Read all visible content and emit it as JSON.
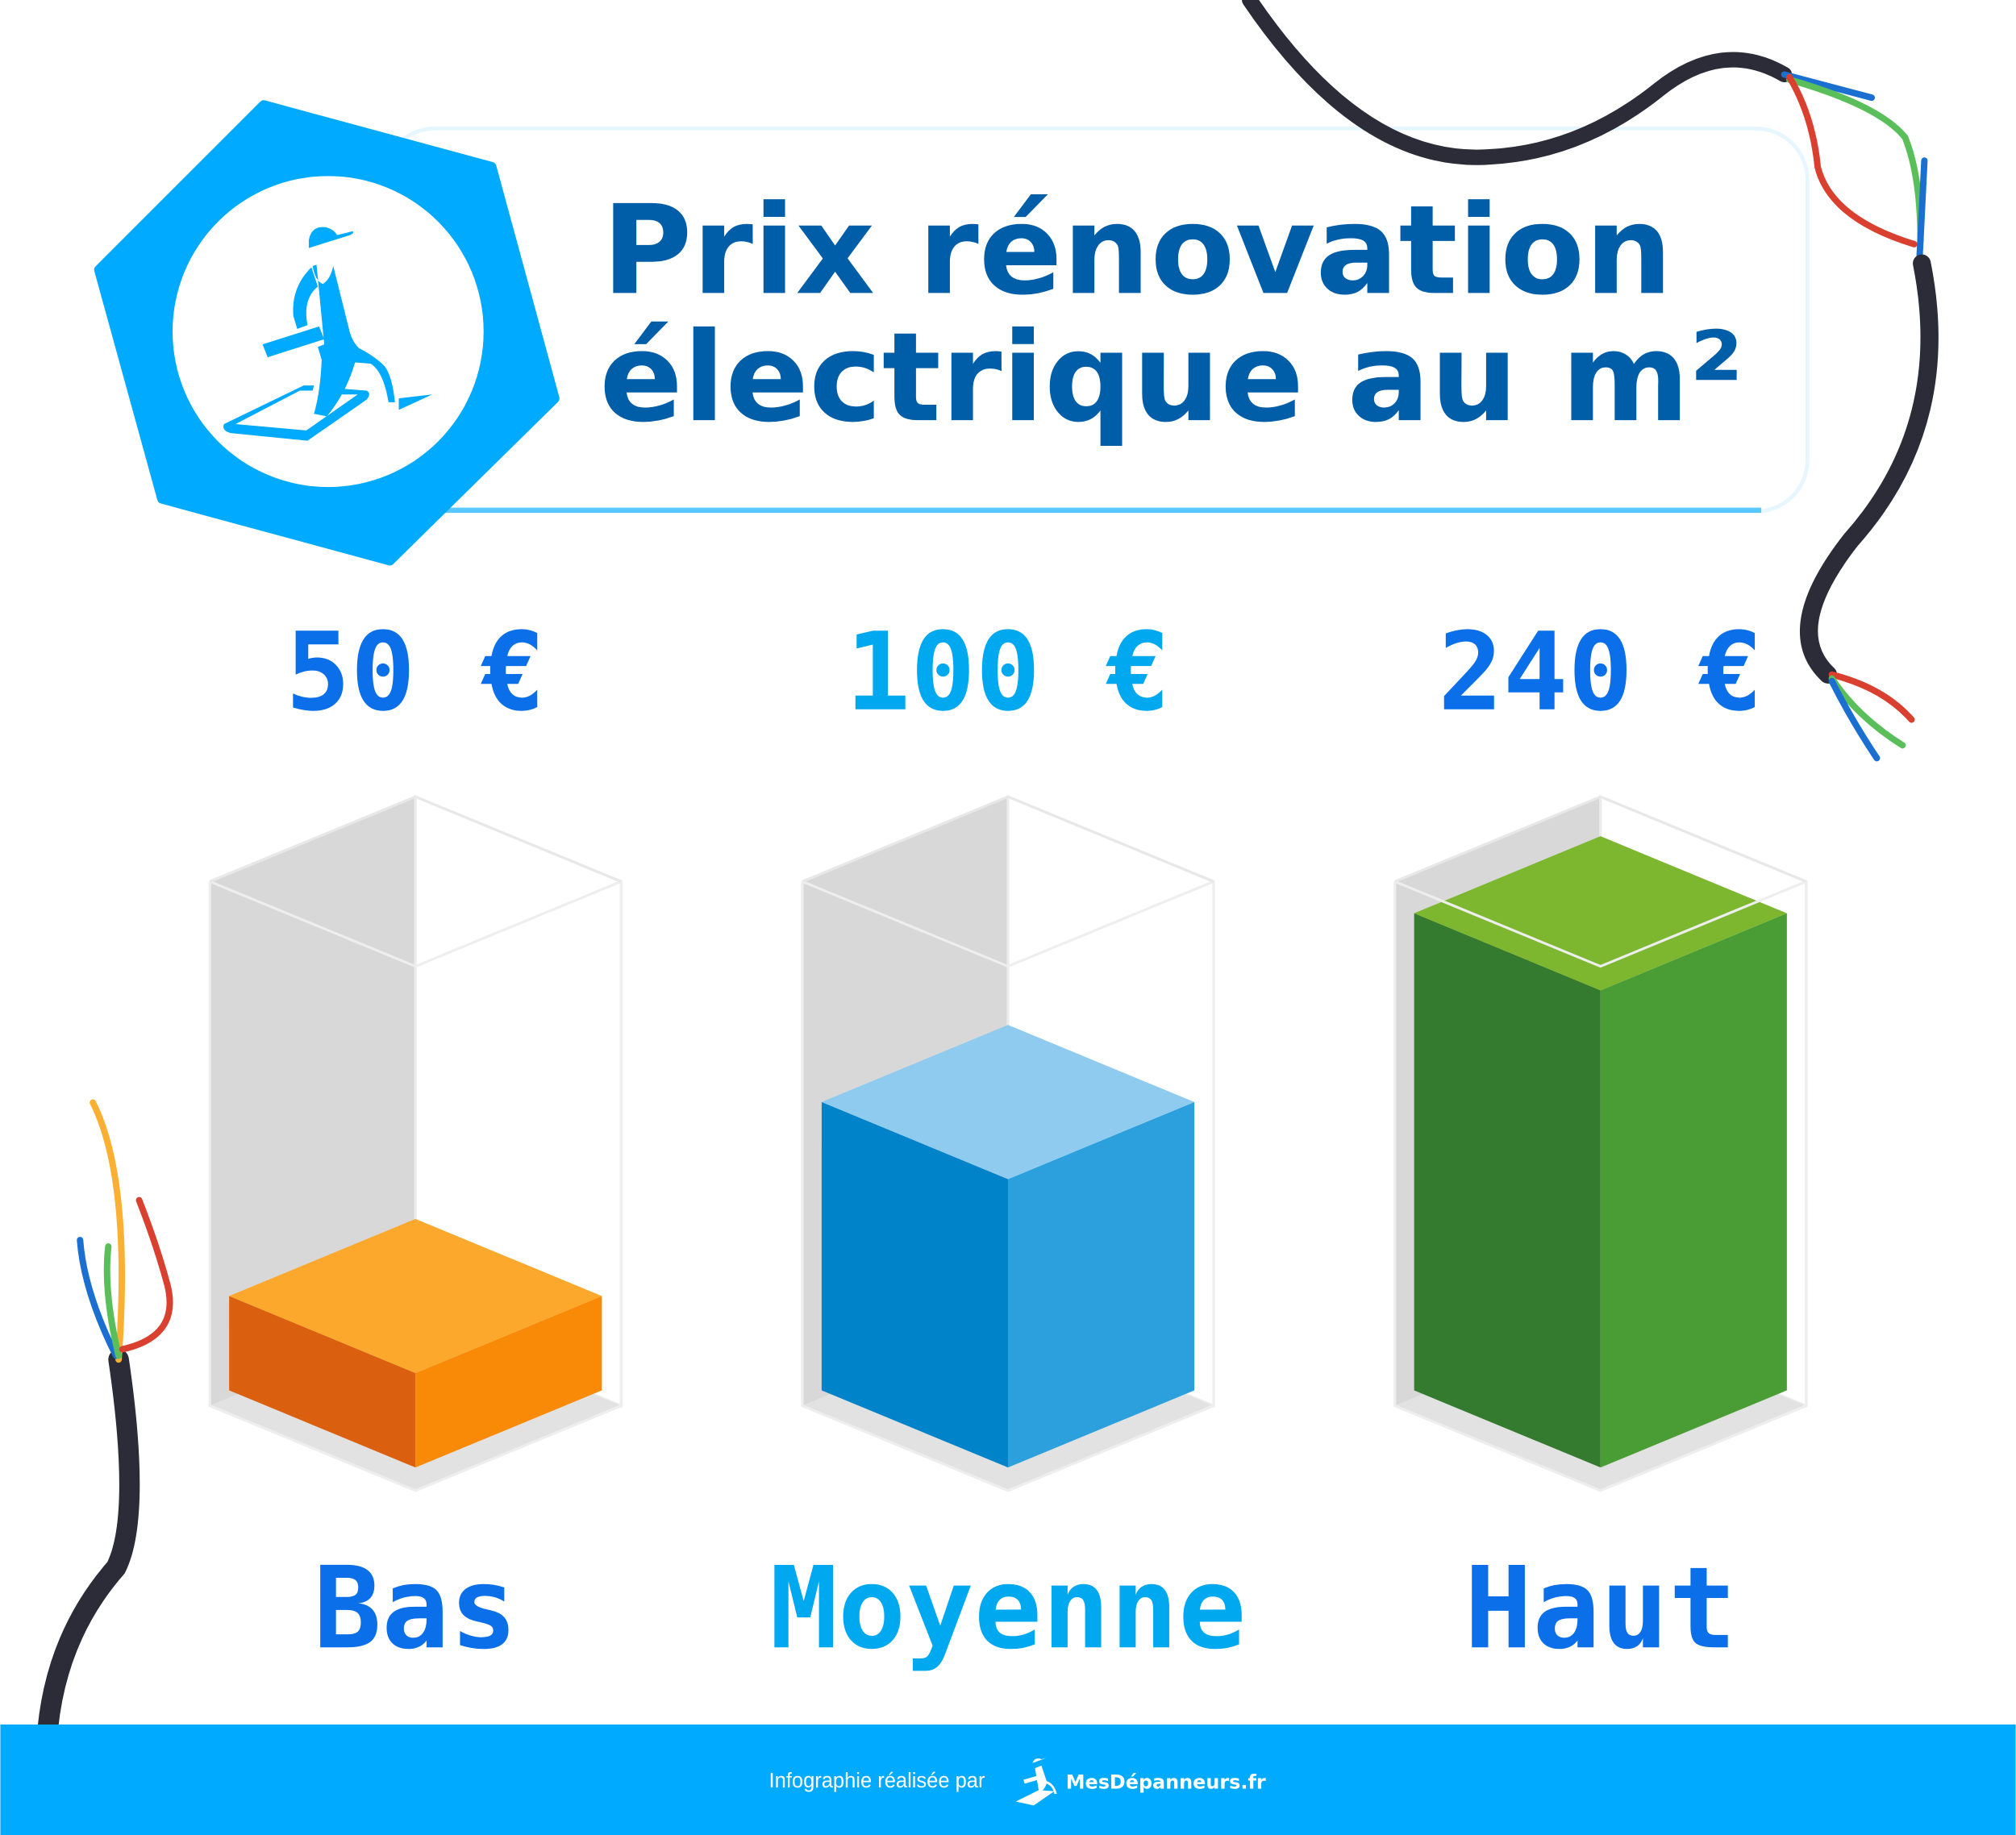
{
  "title": {
    "line1": "Prix rénovation",
    "line2": "électrique au m²"
  },
  "colors": {
    "title": "#005ea8",
    "accent": "#00aaff",
    "dark_blue": "#0a6fe8",
    "light_blue": "#00a8f0",
    "footer_bg": "#00aaff"
  },
  "chart_data": {
    "type": "bar",
    "style": "isometric-3d",
    "title": "Prix rénovation électrique au m²",
    "categories": [
      "Bas",
      "Moyenne",
      "Haut"
    ],
    "values": [
      50,
      100,
      240
    ],
    "value_labels": [
      "50 €",
      "100 €",
      "240 €"
    ],
    "unit": "€",
    "fill_level": [
      0.18,
      0.55,
      0.91
    ],
    "bar_colors": [
      {
        "top": "#fca82d",
        "left": "#da6010",
        "right": "#f98a07"
      },
      {
        "top": "#8ecbef",
        "left": "#0083c8",
        "right": "#2ba0dc"
      },
      {
        "top": "#7cb72f",
        "left": "#347a2f",
        "right": "#4a9d34"
      }
    ],
    "label_colors": [
      "#0a6fe8",
      "#00a8f0",
      "#0a6fe8"
    ],
    "grid": false,
    "legend": "none"
  },
  "footer": {
    "credit": "Infographie réalisée par",
    "brand": "MesDépanneurs.fr"
  },
  "icons": {
    "logo": "plumber-running-with-toolbox-icon",
    "decor": "electric-cable-icon"
  }
}
